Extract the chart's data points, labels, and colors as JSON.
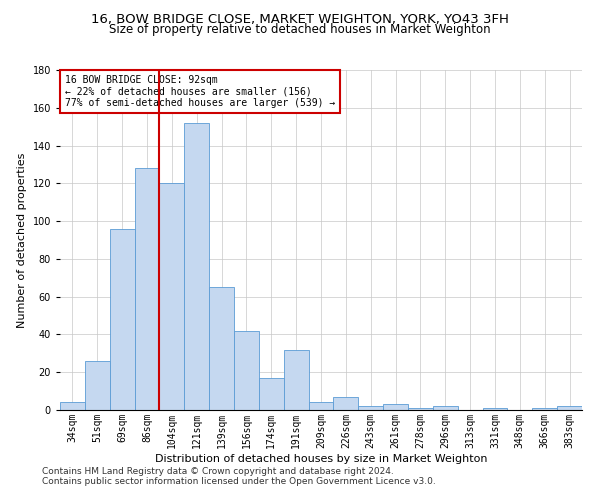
{
  "title_line1": "16, BOW BRIDGE CLOSE, MARKET WEIGHTON, YORK, YO43 3FH",
  "title_line2": "Size of property relative to detached houses in Market Weighton",
  "xlabel": "Distribution of detached houses by size in Market Weighton",
  "ylabel": "Number of detached properties",
  "categories": [
    "34sqm",
    "51sqm",
    "69sqm",
    "86sqm",
    "104sqm",
    "121sqm",
    "139sqm",
    "156sqm",
    "174sqm",
    "191sqm",
    "209sqm",
    "226sqm",
    "243sqm",
    "261sqm",
    "278sqm",
    "296sqm",
    "313sqm",
    "331sqm",
    "348sqm",
    "366sqm",
    "383sqm"
  ],
  "values": [
    4,
    26,
    96,
    128,
    120,
    152,
    65,
    42,
    17,
    32,
    4,
    7,
    2,
    3,
    1,
    2,
    0,
    1,
    0,
    1,
    2
  ],
  "bar_color": "#c5d8f0",
  "bar_edge_color": "#5b9bd5",
  "vline_x": 3.5,
  "vline_color": "#cc0000",
  "annotation_text": "16 BOW BRIDGE CLOSE: 92sqm\n← 22% of detached houses are smaller (156)\n77% of semi-detached houses are larger (539) →",
  "annotation_box_color": "#ffffff",
  "annotation_box_edge": "#cc0000",
  "ylim": [
    0,
    180
  ],
  "yticks": [
    0,
    20,
    40,
    60,
    80,
    100,
    120,
    140,
    160,
    180
  ],
  "footnote1": "Contains HM Land Registry data © Crown copyright and database right 2024.",
  "footnote2": "Contains public sector information licensed under the Open Government Licence v3.0.",
  "title_fontsize": 9.5,
  "subtitle_fontsize": 8.5,
  "axis_label_fontsize": 8,
  "tick_fontsize": 7,
  "annotation_fontsize": 7,
  "footnote_fontsize": 6.5
}
